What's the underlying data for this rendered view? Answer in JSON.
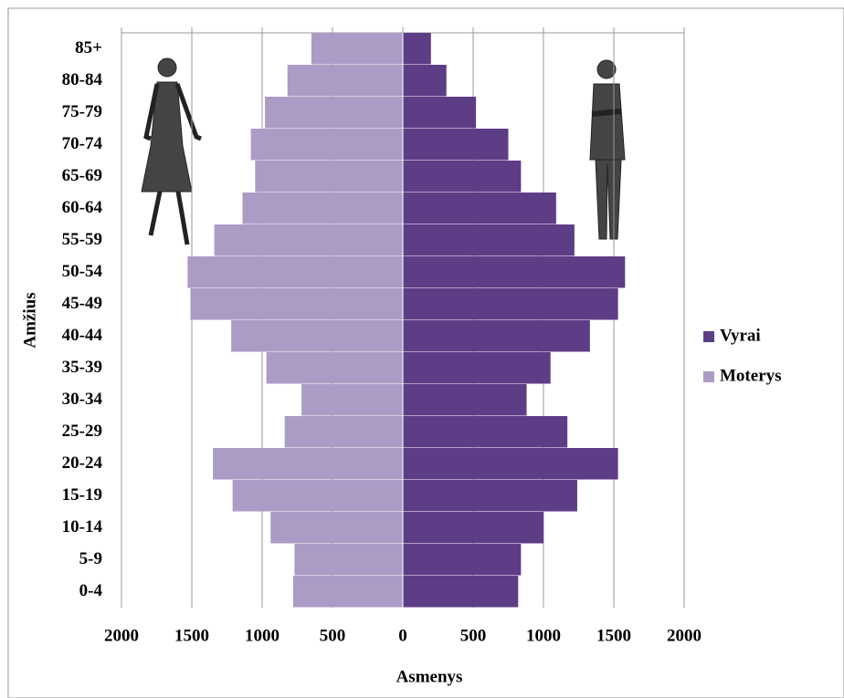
{
  "chart_data": {
    "type": "pyramid",
    "categories": [
      "0-4",
      "5-9",
      "10-14",
      "15-19",
      "20-24",
      "25-29",
      "30-34",
      "35-39",
      "40-44",
      "45-49",
      "50-54",
      "55-59",
      "60-64",
      "65-69",
      "70-74",
      "75-79",
      "80-84",
      "85+"
    ],
    "series": [
      {
        "name": "Vyrai",
        "color": "#5e3d87",
        "values": [
          820,
          840,
          1000,
          1240,
          1530,
          1170,
          880,
          1050,
          1330,
          1530,
          1580,
          1220,
          1090,
          840,
          750,
          520,
          310,
          200
        ]
      },
      {
        "name": "Moterys",
        "color": "#ab9cc6",
        "values": [
          -780,
          -770,
          -940,
          -1210,
          -1350,
          -840,
          -720,
          -970,
          -1220,
          -1510,
          -1530,
          -1340,
          -1140,
          -1050,
          -1080,
          -980,
          -820,
          -650
        ]
      }
    ],
    "xlim": [
      -2000,
      2000
    ],
    "xticks": [
      {
        "value": -2000,
        "label": "2000"
      },
      {
        "value": -1500,
        "label": "1500"
      },
      {
        "value": -1000,
        "label": "1000"
      },
      {
        "value": -500,
        "label": "500"
      },
      0,
      500,
      1000,
      1500,
      2000
    ],
    "x_label": "Asmenys",
    "y_label": "Amžius",
    "grid": true,
    "legend": "right"
  }
}
